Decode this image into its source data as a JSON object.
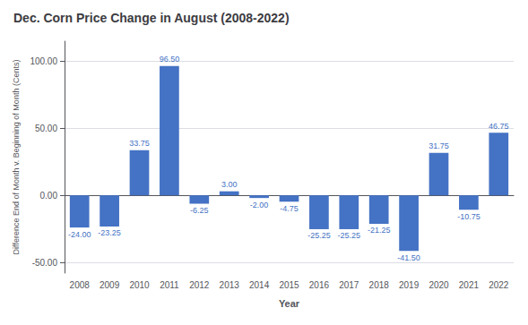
{
  "chart_data": {
    "type": "bar",
    "title": "Dec. Corn Price Change in August (2008-2022)",
    "xlabel": "Year",
    "ylabel": "Difference End of Month v. Beginning of Month (Cents)",
    "categories": [
      "2008",
      "2009",
      "2010",
      "2011",
      "2012",
      "2013",
      "2014",
      "2015",
      "2016",
      "2017",
      "2018",
      "2019",
      "2020",
      "2021",
      "2022"
    ],
    "values": [
      -24.0,
      -23.25,
      33.75,
      96.5,
      -6.25,
      3.0,
      -2.0,
      -4.75,
      -25.25,
      -25.25,
      -21.25,
      -41.5,
      31.75,
      -10.75,
      46.75
    ],
    "value_labels": [
      "-24.00",
      "-23.25",
      "33.75",
      "96.50",
      "-6.25",
      "3.00",
      "-2.00",
      "-4.75",
      "-25.25",
      "-25.25",
      "-21.25",
      "-41.50",
      "31.75",
      "-10.75",
      "46.75"
    ],
    "data_labels": true,
    "color": "#4472C4",
    "ylim": [
      -58,
      115
    ],
    "yticks": [
      {
        "value": -50,
        "label": "-50.00"
      },
      {
        "value": 0,
        "label": "0.00"
      },
      {
        "value": 50,
        "label": "50.00"
      },
      {
        "value": 100,
        "label": "100.00"
      }
    ],
    "grid": true
  }
}
